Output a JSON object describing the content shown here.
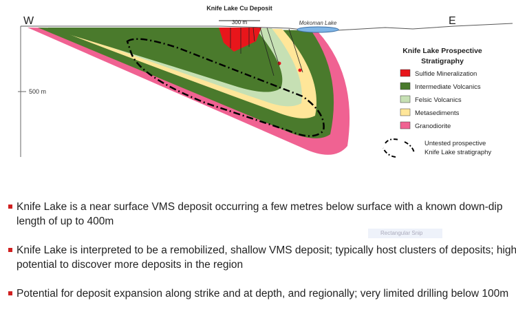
{
  "header": {
    "title": "Knife Lake Cu Deposit",
    "scale": "300 m"
  },
  "section": {
    "west": "W",
    "east": "E",
    "lake": "Mokoman Lake",
    "depth": "500 m"
  },
  "legend": {
    "title_lines": [
      "Knife Lake Prospective",
      "Stratigraphy"
    ],
    "items": [
      {
        "label": "Sulfide Mineralization",
        "color": "#e8161b"
      },
      {
        "label": "Intermediate Volcanics",
        "color": "#4a7a2c"
      },
      {
        "label": "Felsic Volcanics",
        "color": "#c6e0b4"
      },
      {
        "label": "Metasediments",
        "color": "#ffe699"
      },
      {
        "label": "Granodiorite",
        "color": "#f06292"
      }
    ],
    "dashed_lines": [
      "Untested prospective",
      "Knife Lake stratigraphy"
    ]
  },
  "bullets": [
    "Knife Lake is a near surface VMS deposit occurring a few metres below surface with a known down-dip length of up to 400m",
    "Knife Lake is interpreted to be a remobilized, shallow VMS deposit; typically host clusters of deposits; high potential to discover more deposits in the region",
    "Potential for deposit expansion along strike and at depth, and regionally; very limited drilling below 100m"
  ],
  "overlay": "Rectangular Snip"
}
